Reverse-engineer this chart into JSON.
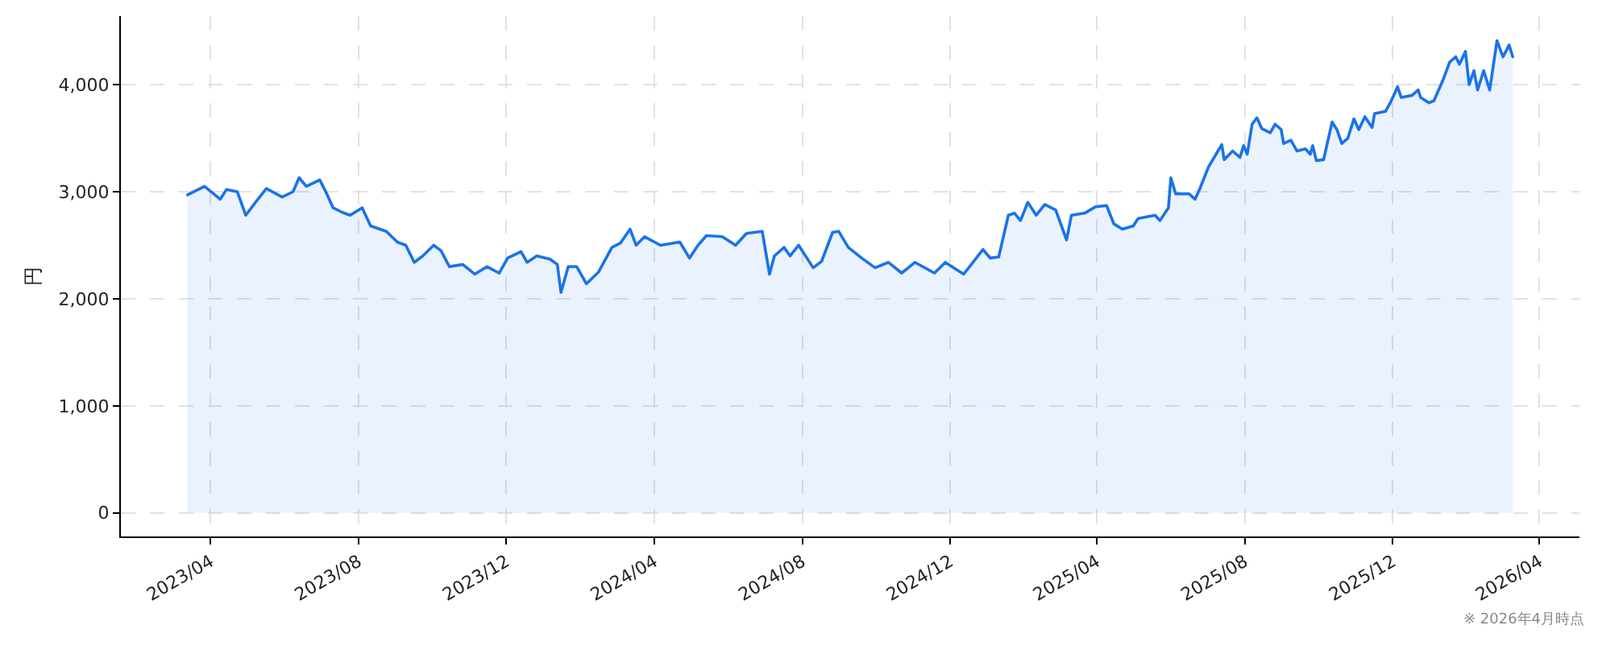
{
  "chart_data": {
    "type": "area",
    "ylabel": "円",
    "annotations": [
      "※ 2026年4月時点"
    ],
    "x": [
      "2023-03-13",
      "2023-03-27",
      "2023-04-09",
      "2023-04-14",
      "2023-04-23",
      "2023-04-30",
      "2023-05-08",
      "2023-05-17",
      "2023-05-30",
      "2023-06-08",
      "2023-06-13",
      "2023-06-19",
      "2023-06-30",
      "2023-07-05",
      "2023-07-11",
      "2023-07-18",
      "2023-07-25",
      "2023-08-04",
      "2023-08-11",
      "2023-08-24",
      "2023-09-02",
      "2023-09-09",
      "2023-09-16",
      "2023-09-23",
      "2023-10-02",
      "2023-10-08",
      "2023-10-15",
      "2023-10-26",
      "2023-11-05",
      "2023-11-15",
      "2023-11-25",
      "2023-12-02",
      "2023-12-13",
      "2023-12-18",
      "2023-12-26",
      "2024-01-06",
      "2024-01-12",
      "2024-01-15",
      "2024-01-21",
      "2024-01-28",
      "2024-02-05",
      "2024-02-15",
      "2024-02-26",
      "2024-03-04",
      "2024-03-12",
      "2024-03-17",
      "2024-03-24",
      "2024-04-06",
      "2024-04-22",
      "2024-04-30",
      "2024-05-07",
      "2024-05-14",
      "2024-05-27",
      "2024-06-07",
      "2024-06-16",
      "2024-06-29",
      "2024-07-05",
      "2024-07-09",
      "2024-07-17",
      "2024-07-22",
      "2024-07-29",
      "2024-08-10",
      "2024-08-17",
      "2024-08-26",
      "2024-08-31",
      "2024-09-08",
      "2024-09-19",
      "2024-09-30",
      "2024-10-11",
      "2024-10-22",
      "2024-11-02",
      "2024-11-18",
      "2024-11-27",
      "2024-12-12",
      "2024-12-17",
      "2024-12-28",
      "2025-01-03",
      "2025-01-10",
      "2025-01-18",
      "2025-01-23",
      "2025-01-28",
      "2025-02-03",
      "2025-02-10",
      "2025-02-17",
      "2025-02-26",
      "2025-03-07",
      "2025-03-11",
      "2025-03-22",
      "2025-03-31",
      "2025-04-09",
      "2025-04-15",
      "2025-04-22",
      "2025-05-01",
      "2025-05-05",
      "2025-05-19",
      "2025-05-23",
      "2025-05-30",
      "2025-06-01",
      "2025-06-05",
      "2025-06-16",
      "2025-06-21",
      "2025-06-25",
      "2025-07-02",
      "2025-07-13",
      "2025-07-15",
      "2025-07-22",
      "2025-07-28",
      "2025-07-31",
      "2025-08-03",
      "2025-08-07",
      "2025-08-11",
      "2025-08-15",
      "2025-08-22",
      "2025-08-26",
      "2025-08-31",
      "2025-09-02",
      "2025-09-08",
      "2025-09-13",
      "2025-09-20",
      "2025-09-24",
      "2025-09-26",
      "2025-09-29",
      "2025-10-05",
      "2025-10-12",
      "2025-10-16",
      "2025-10-20",
      "2025-10-25",
      "2025-10-30",
      "2025-11-03",
      "2025-11-08",
      "2025-11-14",
      "2025-11-16",
      "2025-11-25",
      "2025-11-29",
      "2025-12-05",
      "2025-12-08",
      "2025-12-17",
      "2025-12-22",
      "2025-12-24",
      "2025-12-31",
      "2026-01-04",
      "2026-01-11",
      "2026-01-17",
      "2026-01-22",
      "2026-01-25",
      "2026-01-30",
      "2026-02-02",
      "2026-02-06",
      "2026-02-09",
      "2026-02-14",
      "2026-02-19",
      "2026-02-25",
      "2026-03-02",
      "2026-03-07",
      "2026-03-10"
    ],
    "series": [
      {
        "color": "#1a73e8",
        "values": [
          2970,
          3050,
          2930,
          3020,
          3000,
          2780,
          2900,
          3030,
          2950,
          3000,
          3130,
          3050,
          3110,
          3000,
          2850,
          2810,
          2780,
          2850,
          2680,
          2630,
          2530,
          2500,
          2340,
          2400,
          2500,
          2450,
          2300,
          2320,
          2230,
          2300,
          2240,
          2380,
          2440,
          2340,
          2400,
          2370,
          2320,
          2060,
          2300,
          2300,
          2140,
          2250,
          2480,
          2520,
          2650,
          2500,
          2580,
          2500,
          2530,
          2380,
          2500,
          2590,
          2580,
          2500,
          2610,
          2630,
          2230,
          2400,
          2480,
          2400,
          2500,
          2290,
          2350,
          2620,
          2630,
          2480,
          2380,
          2290,
          2340,
          2240,
          2340,
          2240,
          2340,
          2230,
          2300,
          2460,
          2380,
          2390,
          2780,
          2800,
          2730,
          2900,
          2780,
          2880,
          2830,
          2550,
          2780,
          2800,
          2860,
          2870,
          2700,
          2650,
          2680,
          2750,
          2780,
          2730,
          2850,
          3130,
          2980,
          2980,
          2930,
          3030,
          3230,
          3440,
          3300,
          3380,
          3320,
          3430,
          3350,
          3630,
          3690,
          3590,
          3550,
          3630,
          3580,
          3450,
          3480,
          3380,
          3400,
          3350,
          3430,
          3290,
          3300,
          3650,
          3580,
          3450,
          3500,
          3680,
          3580,
          3700,
          3600,
          3730,
          3750,
          3830,
          3980,
          3880,
          3900,
          3950,
          3880,
          3830,
          3850,
          4030,
          4210,
          4260,
          4190,
          4310,
          4000,
          4130,
          3950,
          4130,
          3950,
          4410,
          4260,
          4370,
          4260
        ]
      }
    ],
    "xlim": [
      "2023-01-17",
      "2026-05-04"
    ],
    "xticks": [
      {
        "value": "2023-04",
        "label": "2023/04"
      },
      {
        "value": "2023-08",
        "label": "2023/08"
      },
      {
        "value": "2023-12",
        "label": "2023/12"
      },
      {
        "value": "2024-04",
        "label": "2024/04"
      },
      {
        "value": "2024-08",
        "label": "2024/08"
      },
      {
        "value": "2024-12",
        "label": "2024/12"
      },
      {
        "value": "2025-04",
        "label": "2025/04"
      },
      {
        "value": "2025-08",
        "label": "2025/08"
      },
      {
        "value": "2025-12",
        "label": "2025/12"
      },
      {
        "value": "2026-04",
        "label": "2026/04"
      }
    ],
    "ylim": [
      -220,
      4640
    ],
    "yticks": [
      0,
      {
        "value": 1000,
        "label": "1,000"
      },
      {
        "value": 2000,
        "label": "2,000"
      },
      {
        "value": 3000,
        "label": "3,000"
      },
      {
        "value": 4000,
        "label": "4,000"
      }
    ],
    "grid": true
  }
}
